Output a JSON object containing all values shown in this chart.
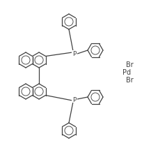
{
  "bg_color": "#ffffff",
  "line_color": "#404040",
  "line_width": 0.9,
  "fig_width": 2.17,
  "fig_height": 2.03,
  "dpi": 100,
  "pd_label": "Pd",
  "br1_label": "Br",
  "br2_label": "Br",
  "font_size": 6.5
}
